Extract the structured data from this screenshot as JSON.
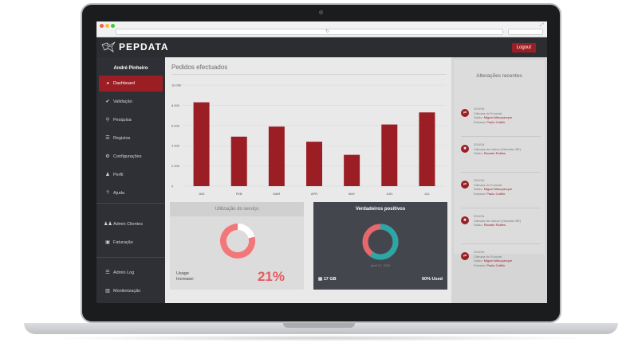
{
  "header": {
    "brand": "PEPDATA",
    "logout_label": "Logout"
  },
  "sidebar": {
    "user": "André Pinheiro",
    "items": [
      {
        "label": "Dashboard",
        "icon": "dashboard-icon",
        "glyph": "◕",
        "active": true
      },
      {
        "label": "Validação",
        "icon": "check-icon",
        "glyph": "✔"
      },
      {
        "label": "Pesquisa",
        "icon": "search-icon",
        "glyph": "⚲"
      },
      {
        "label": "Registos",
        "icon": "list-icon",
        "glyph": "☰"
      },
      {
        "label": "Configurações",
        "icon": "gear-icon",
        "glyph": "⚙"
      },
      {
        "label": "Perfil",
        "icon": "user-icon",
        "glyph": "♟"
      },
      {
        "label": "Ajuda",
        "icon": "help-icon",
        "glyph": "?"
      }
    ],
    "admin_items": [
      {
        "label": "Admin Clientes",
        "icon": "users-icon",
        "glyph": "♟♟"
      },
      {
        "label": "Faturação",
        "icon": "billing-icon",
        "glyph": "▣"
      }
    ],
    "bottom_items": [
      {
        "label": "Admin Log",
        "icon": "log-icon",
        "glyph": "☰"
      },
      {
        "label": "Monitorização",
        "icon": "bar-chart-icon",
        "glyph": "▥"
      }
    ]
  },
  "main": {
    "title": "Pedidos efectuados"
  },
  "chart_data": {
    "type": "bar",
    "title": "Pedidos efectuados",
    "categories": [
      "JAN",
      "FEB",
      "MAR",
      "APR",
      "MAY",
      "JUN",
      "JUL"
    ],
    "values": [
      8300,
      4900,
      5900,
      4400,
      3100,
      6100,
      7300
    ],
    "yticks": [
      "0",
      "2.000",
      "4.000",
      "6.000",
      "8.000",
      "10.000"
    ],
    "ylim": [
      0,
      10000
    ],
    "color": "#9b1e25",
    "grid": true
  },
  "usage_card": {
    "title": "Utilização do serviço",
    "label": "Usage Increase:",
    "value_label": "21%",
    "value": 0.21,
    "colors": {
      "ring": "#f2777a",
      "track": "#ffffff"
    }
  },
  "positives_card": {
    "title": "Verdadeiros positivos",
    "date": "April 17, 2016",
    "storage": "17 GB",
    "used": "60% Used",
    "used_fraction": 0.6,
    "colors": {
      "a": "#2aa7a7",
      "b": "#e8676b"
    }
  },
  "recent": {
    "title": "Alterações recentes",
    "entries": [
      {
        "type": "swap",
        "glyph": "⇄",
        "lines": [
          {
            "t": "20/4/16"
          },
          {
            "t": "Câmara do Funchal"
          },
          {
            "p": "Saído: ",
            "h": "Miguel Albuquerque"
          },
          {
            "p": "Entrado: ",
            "h": "Paulo Cafôfo"
          }
        ]
      },
      {
        "type": "remove",
        "glyph": "✖",
        "lines": [
          {
            "t": "20/4/16"
          },
          {
            "t": "Câmara de Lisboa (Vereador BE)"
          },
          {
            "p": "Saído: ",
            "h": "Ricardo Robles"
          }
        ]
      },
      {
        "type": "swap",
        "glyph": "⇄",
        "lines": [
          {
            "t": "20/4/16"
          },
          {
            "t": "Câmara do Funchal"
          },
          {
            "p": "Saído: ",
            "h": "Miguel Albuquerque"
          },
          {
            "p": "Entrado: ",
            "h": "Paulo Cafôfo"
          }
        ]
      },
      {
        "type": "remove",
        "glyph": "✖",
        "lines": [
          {
            "t": "20/4/16"
          },
          {
            "t": "Câmara de Lisboa (Vereador BE)"
          },
          {
            "p": "Saído: ",
            "h": "Ricardo Robles"
          }
        ]
      },
      {
        "type": "swap",
        "glyph": "⇄",
        "lines": [
          {
            "t": "20/4/16"
          },
          {
            "t": "Câmara do Funchal"
          },
          {
            "p": "Saído: ",
            "h": "Miguel Albuquerque"
          },
          {
            "p": "Entrado: ",
            "h": "Paulo Cafôfo"
          }
        ]
      }
    ]
  }
}
